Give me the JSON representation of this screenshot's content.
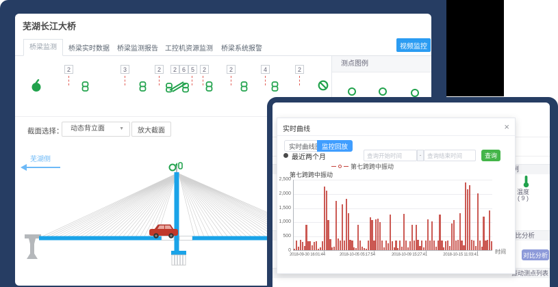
{
  "colors": {
    "accent_blue": "#2b9cf2",
    "active_tab_blue": "#409eff",
    "sensor_green": "#21a24c",
    "chart_red": "#c4423b",
    "window_navy": "#263d63",
    "periwinkle_button": "#8d9ad9",
    "bridge_blue": "#1aa3e8"
  },
  "window1": {
    "title": "芜湖长江大桥",
    "tabs": [
      {
        "label": "桥梁监测",
        "active": true
      },
      {
        "label": "桥梁实时数据",
        "active": false
      },
      {
        "label": "桥梁监测报告",
        "active": false
      },
      {
        "label": "工控机资源监测",
        "active": false
      },
      {
        "label": "桥梁系统报警",
        "active": false
      }
    ],
    "video_button": "视频监控",
    "sensors": [
      {
        "count": "2"
      },
      {
        "count": "3"
      },
      {
        "count": "2"
      },
      {
        "count": "2"
      },
      {
        "count": "6"
      },
      {
        "count": "5"
      },
      {
        "count": "2"
      },
      {
        "count": "2"
      },
      {
        "count": "4"
      },
      {
        "count": "2"
      }
    ],
    "icons": {
      "weight": "weight-sensor-icon",
      "chain": "chain-link-sensor-icon",
      "ban": "disabled-sensor-icon"
    },
    "section_label": "截面选择：",
    "section_value": "动态背立面",
    "select_caret": "▼",
    "zoom_button": "放大截面",
    "side_label": "芜湖侧",
    "legend_panel_title": "测点图例"
  },
  "window2": {
    "sidebar": {
      "panel_title": "测点图例",
      "temp_label": "温度",
      "temp_count": "( 9 )",
      "compare_header": "对比分析",
      "compare_button": "对比分析",
      "list_header": "振动测点列表"
    }
  },
  "modal": {
    "title": "实时曲线",
    "close": "×",
    "tab_realtime": "实时曲线图",
    "tab_playback": "监控回放",
    "radio_label": "最近两个月",
    "start_placeholder": "查询开始时间",
    "separator": "-",
    "end_placeholder": "查询结束时间",
    "query_button": "查询"
  },
  "chart_data": {
    "type": "bar",
    "title": "第七跨跨中振动",
    "legend": "第七跨跨中振动",
    "xlabel": "时间",
    "ylim": [
      0,
      2500
    ],
    "ytick_labels": [
      "0",
      "500",
      "1,000",
      "1,500",
      "2,000",
      "2,500"
    ],
    "xtick_labels": [
      "2018-09-30 16:01:44",
      "2018-10-05 05:17:54",
      "2018-10-09 15:27:41",
      "2018-10-15 11:03:41"
    ],
    "grid": true,
    "legend_position": "top",
    "series_color": "#c4423b",
    "values": [
      60,
      340,
      120,
      355,
      300,
      150,
      890,
      320,
      310,
      180,
      300,
      320,
      60,
      90,
      320,
      2230,
      2100,
      1050,
      380,
      100,
      130,
      1740,
      420,
      330,
      1620,
      340,
      1810,
      1310,
      350,
      330,
      90,
      70,
      900,
      340,
      120,
      80,
      60,
      330,
      1160,
      1060,
      340,
      1080,
      1100,
      990,
      340,
      90,
      330,
      250,
      1240,
      320,
      100,
      330,
      80,
      340,
      130,
      1270,
      340,
      100,
      320,
      890,
      340,
      880,
      350,
      140,
      330,
      90,
      340,
      1090,
      330,
      1000,
      340,
      110,
      340,
      1250,
      330,
      100,
      320,
      340,
      140,
      940,
      1070,
      330,
      350,
      1290,
      340,
      160,
      2380,
      2150,
      2290,
      350,
      330,
      140,
      2000,
      340,
      120,
      1190,
      330,
      350,
      1400,
      310
    ]
  }
}
